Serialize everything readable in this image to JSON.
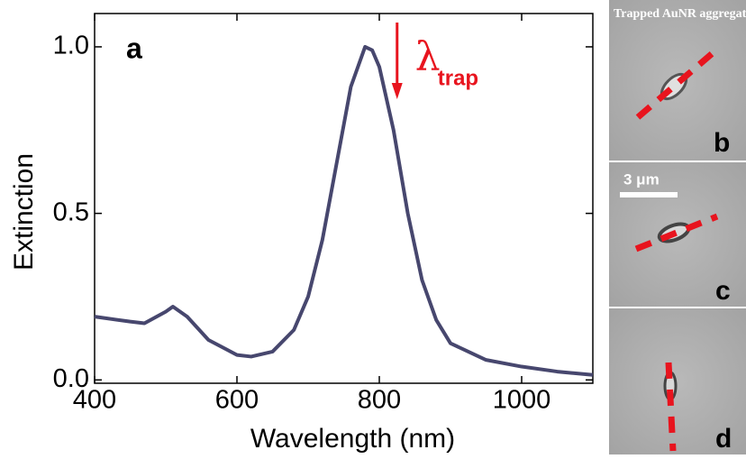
{
  "chart_data": {
    "type": "line",
    "x_label": "Wavelength (nm)",
    "y_label": "Extinction",
    "panel_label": "a",
    "annotation": {
      "symbol": "λ",
      "subscript": "trap",
      "color": "#e8141e",
      "x": 825
    },
    "x": [
      400,
      450,
      470,
      500,
      510,
      530,
      560,
      600,
      620,
      650,
      680,
      700,
      720,
      740,
      760,
      780,
      790,
      800,
      820,
      840,
      860,
      880,
      900,
      950,
      1000,
      1050,
      1100
    ],
    "series": [
      {
        "color": "#47476e",
        "values": [
          0.19,
          0.175,
          0.17,
          0.205,
          0.22,
          0.19,
          0.12,
          0.075,
          0.07,
          0.085,
          0.15,
          0.25,
          0.42,
          0.65,
          0.88,
          1.0,
          0.99,
          0.94,
          0.75,
          0.5,
          0.3,
          0.18,
          0.11,
          0.06,
          0.04,
          0.025,
          0.015
        ]
      }
    ],
    "xlim": [
      400,
      1100
    ],
    "ylim": [
      -0.01,
      1.1
    ],
    "xticks": [
      400,
      600,
      800,
      1000
    ],
    "yticks": [
      {
        "value": 0,
        "label": "0.0"
      },
      0.5,
      {
        "value": 1,
        "label": "1.0"
      }
    ]
  },
  "panels": {
    "b": {
      "caption": "Trapped AuNR aggregate",
      "label": "b"
    },
    "c": {
      "scale_bar": "3 μm",
      "label": "c"
    },
    "d": {
      "label": "d"
    }
  }
}
